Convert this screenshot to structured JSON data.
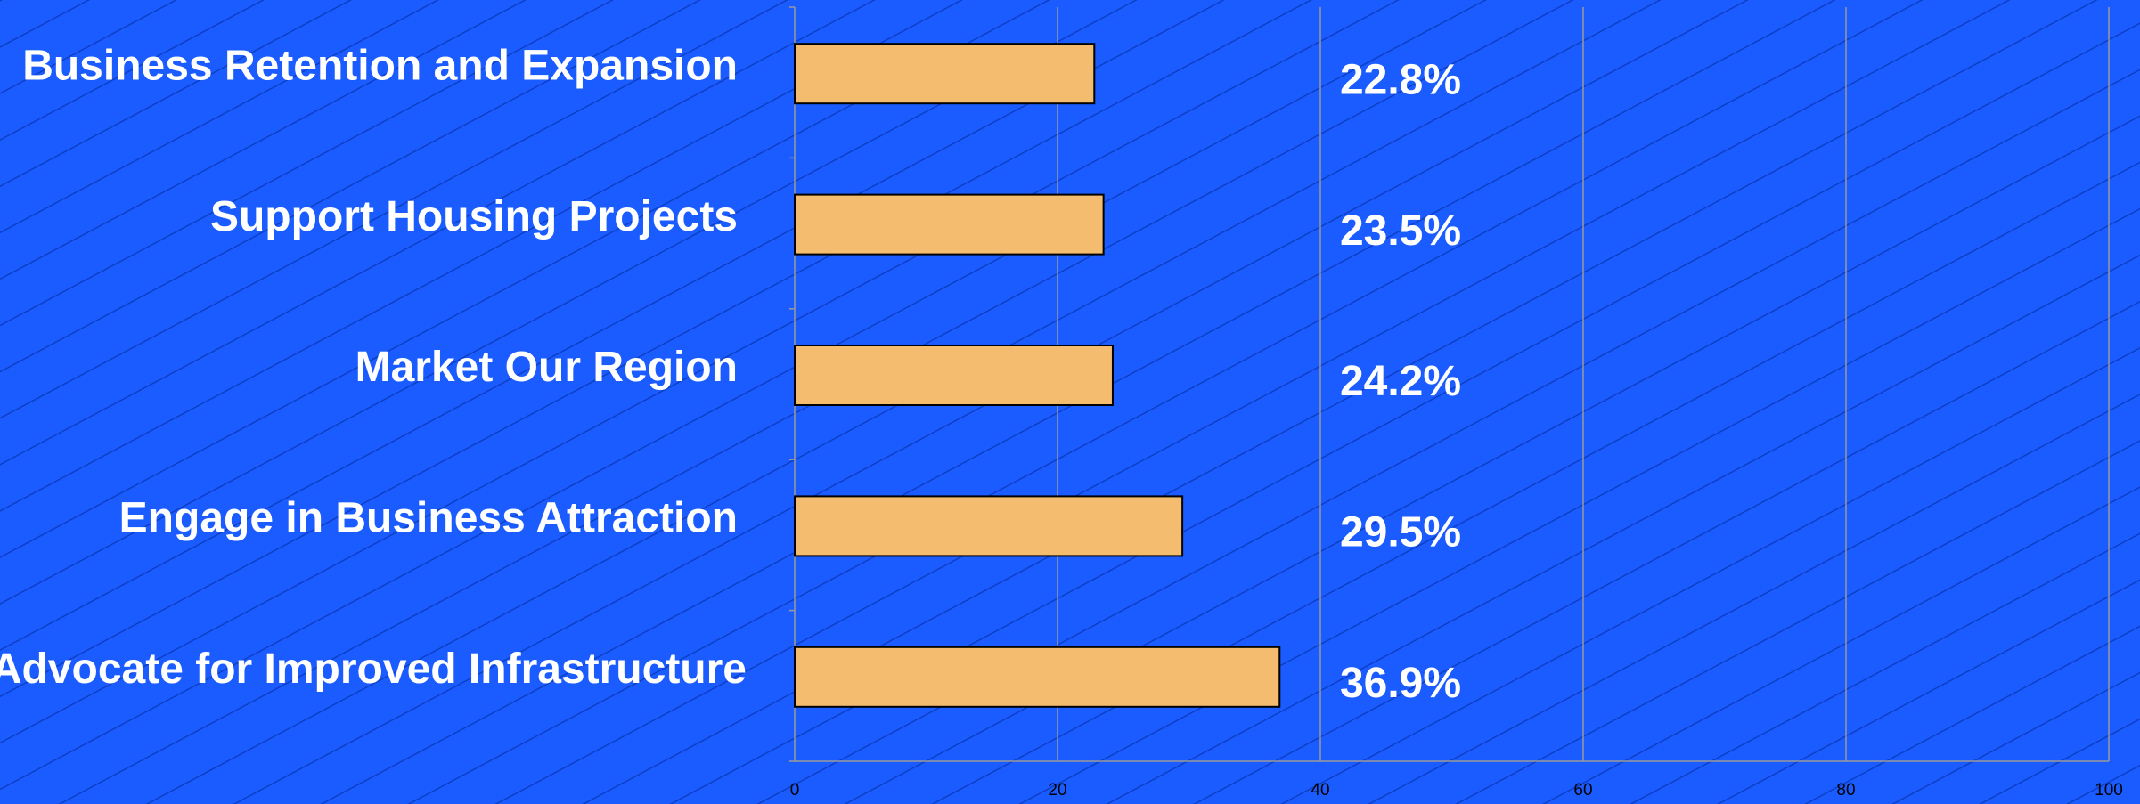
{
  "chart_data": {
    "type": "barh",
    "categories": [
      "Business Retention and Expansion",
      "Support Housing Projects",
      "Market Our Region",
      "Engage in Business Attraction",
      "Advocate for Improved Infrastructure"
    ],
    "values": [
      22.8,
      23.5,
      24.2,
      29.5,
      36.9
    ],
    "value_labels": [
      "22.8%",
      "23.5%",
      "24.2%",
      "29.5%",
      "36.9%"
    ],
    "color": "#f4bc6e",
    "xlim": [
      0,
      100
    ],
    "xticks": [
      0,
      20,
      40,
      60,
      80,
      100
    ],
    "grid": true
  }
}
